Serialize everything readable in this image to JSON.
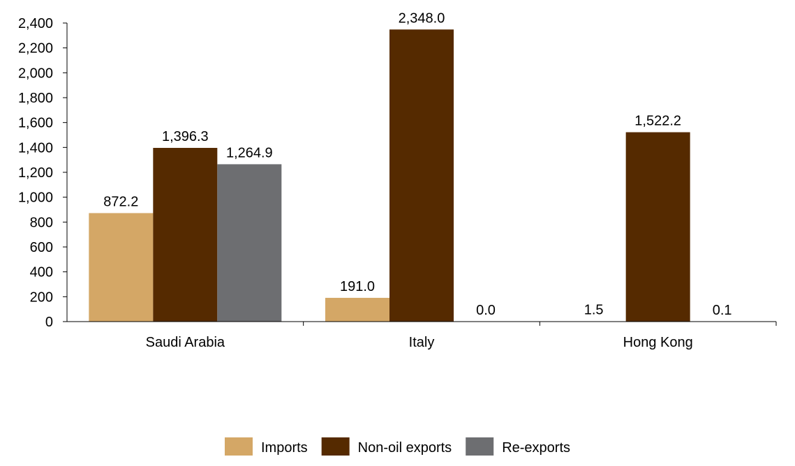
{
  "chart_data": {
    "type": "bar",
    "title": "",
    "xlabel": "",
    "ylabel": "",
    "ylim": [
      0,
      2400
    ],
    "yticks": [
      0,
      200,
      400,
      600,
      800,
      1000,
      1200,
      1400,
      1600,
      1800,
      2000,
      2200,
      2400
    ],
    "ytick_labels": [
      "0",
      "200",
      "400",
      "600",
      "800",
      "1,000",
      "1,200",
      "1,400",
      "1,600",
      "1,800",
      "2,000",
      "2,200",
      "2,400"
    ],
    "categories": [
      "Saudi Arabia",
      "Italy",
      "Hong Kong"
    ],
    "series": [
      {
        "name": "Imports",
        "color": "#D4A766",
        "values": [
          872.2,
          191.0,
          1.5
        ],
        "labels": [
          "872.2",
          "191.0",
          "1.5"
        ]
      },
      {
        "name": "Non-oil exports",
        "color": "#552A00",
        "values": [
          1396.3,
          2348.0,
          1522.2
        ],
        "labels": [
          "1,396.3",
          "2,348.0",
          "1,522.2"
        ]
      },
      {
        "name": "Re-exports",
        "color": "#6D6E71",
        "values": [
          1264.9,
          0.0,
          0.1
        ],
        "labels": [
          "1,264.9",
          "0.0",
          "0.1"
        ]
      }
    ],
    "grid": false,
    "legend_position": "bottom-center"
  }
}
